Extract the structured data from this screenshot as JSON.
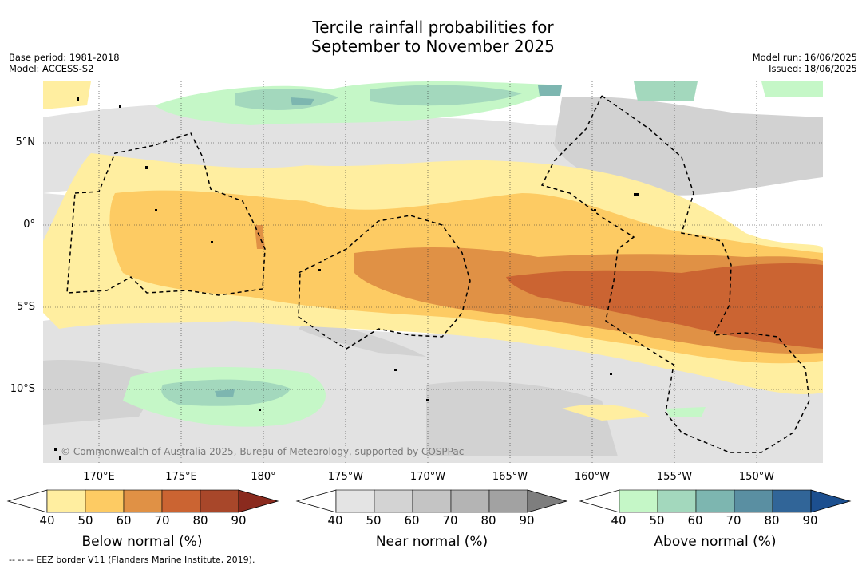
{
  "title_line1": "Tercile rainfall probabilities for",
  "title_line2": "September to November 2025",
  "base_period": "Base period: 1981-2018",
  "model": "Model: ACCESS-S2",
  "model_run": "Model run: 16/06/2025",
  "issued": "Issued: 18/06/2025",
  "lat_labels": [
    "5°N",
    "0°",
    "5°S",
    "10°S"
  ],
  "lon_labels": [
    "170°E",
    "175°E",
    "180°",
    "175°W",
    "170°W",
    "165°W",
    "160°W",
    "155°W",
    "150°W"
  ],
  "copyright": "© Commonwealth of Australia 2025, Bureau of Meteorology, supported by COSPPac",
  "footnote": "--  --  -- EEZ border V11 (Flanders Marine Institute, 2019).",
  "colorbars": [
    {
      "title": "Below normal (%)",
      "ticks": [
        "40",
        "50",
        "60",
        "70",
        "80",
        "90"
      ],
      "colors": [
        "#ffffff",
        "#ffeea0",
        "#fdcb63",
        "#e09145",
        "#cb6432",
        "#a8472a",
        "#8a2a1e"
      ]
    },
    {
      "title": "Near normal (%)",
      "ticks": [
        "40",
        "50",
        "60",
        "70",
        "80",
        "90"
      ],
      "colors": [
        "#ffffff",
        "#e4e4e4",
        "#d3d3d3",
        "#c4c4c4",
        "#b4b4b4",
        "#a2a2a2",
        "#7e7e7e"
      ]
    },
    {
      "title": "Above normal (%)",
      "ticks": [
        "40",
        "50",
        "60",
        "70",
        "80",
        "90"
      ],
      "colors": [
        "#ffffff",
        "#c5f7c7",
        "#a3d8bd",
        "#7db6b0",
        "#5a8fa2",
        "#316598",
        "#1c4f8f"
      ]
    }
  ]
}
